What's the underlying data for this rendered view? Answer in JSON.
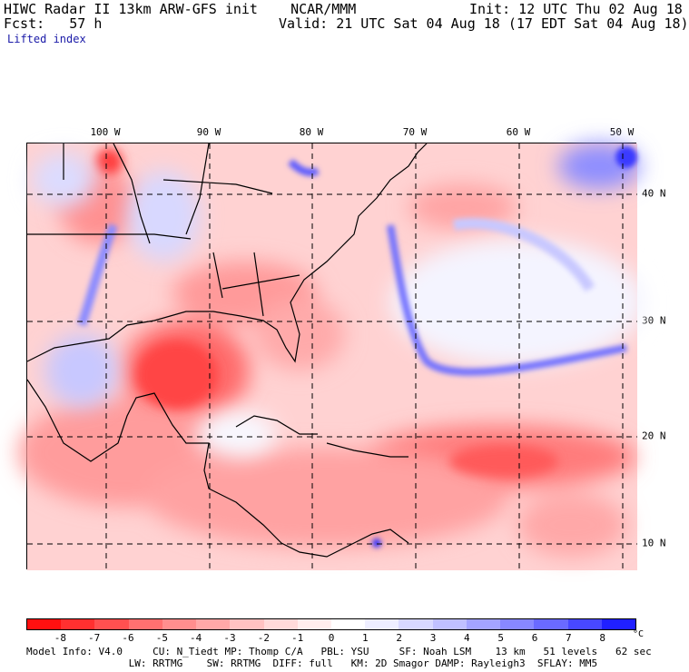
{
  "header": {
    "line1_left": "HIWC Radar II 13km ARW-GFS init    NCAR/MMM",
    "line1_right": "Init: 12 UTC Thu 02 Aug 18",
    "line2_left": "Fcst:   57 h",
    "line2_right": "Valid: 21 UTC Sat 04 Aug 18 (17 EDT Sat 04 Aug 18)",
    "field_name": "Lifted index"
  },
  "map": {
    "longitude_labels": [
      "100 W",
      "90 W",
      "80 W",
      "70 W",
      "60 W",
      "50 W"
    ],
    "latitude_labels": [
      "40 N",
      "30 N",
      "20 N",
      "10 N"
    ],
    "gridline_style": "dashed"
  },
  "colorbar": {
    "labels": [
      "-8",
      "-7",
      "-6",
      "-5",
      "-4",
      "-3",
      "-2",
      "-1",
      "0",
      "1",
      "2",
      "3",
      "4",
      "5",
      "6",
      "7",
      "8"
    ],
    "unit": "°C",
    "colors": [
      "#ff1010",
      "#ff3030",
      "#ff5050",
      "#ff7070",
      "#ff8e8e",
      "#ffa8a8",
      "#ffc2c2",
      "#ffdada",
      "#ffeeee",
      "#ffffff",
      "#eeeeff",
      "#d8d8ff",
      "#c0c0ff",
      "#a4a4ff",
      "#8888ff",
      "#6a6aff",
      "#4848ff",
      "#2020ff"
    ]
  },
  "footer": {
    "line1": "Model Info: V4.0     CU: N_Tiedt MP: Thomp C/A   PBL: YSU     SF: Noah LSM    13 km   51 levels   62 sec",
    "line2": "                 LW: RRTMG    SW: RRTMG  DIFF: full   KM: 2D Smagor DAMP: Rayleigh3  SFLAY: MM5"
  }
}
